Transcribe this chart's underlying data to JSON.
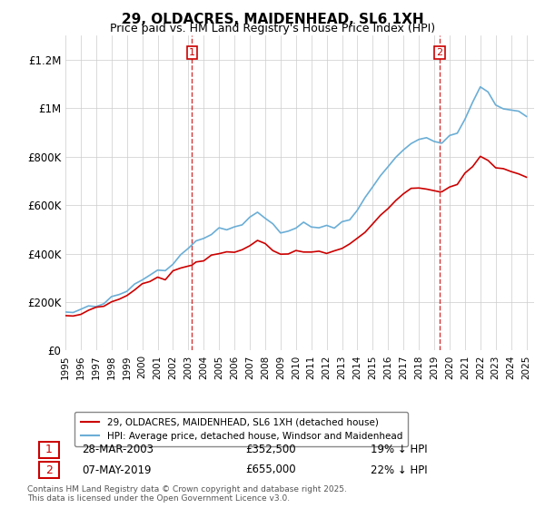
{
  "title": "29, OLDACRES, MAIDENHEAD, SL6 1XH",
  "subtitle": "Price paid vs. HM Land Registry's House Price Index (HPI)",
  "legend_line1": "29, OLDACRES, MAIDENHEAD, SL6 1XH (detached house)",
  "legend_line2": "HPI: Average price, detached house, Windsor and Maidenhead",
  "footnote": "Contains HM Land Registry data © Crown copyright and database right 2025.\nThis data is licensed under the Open Government Licence v3.0.",
  "sale1_label": "1",
  "sale1_date": "28-MAR-2003",
  "sale1_price": "£352,500",
  "sale1_note": "19% ↓ HPI",
  "sale2_label": "2",
  "sale2_date": "07-MAY-2019",
  "sale2_price": "£655,000",
  "sale2_note": "22% ↓ HPI",
  "sale1_year": 2003.24,
  "sale1_value": 352500,
  "sale2_year": 2019.35,
  "sale2_value": 655000,
  "hpi_color": "#6baed6",
  "price_color": "#cc0000",
  "sale_marker_color": "#cc0000",
  "background_color": "#ffffff",
  "ylim": [
    0,
    1300000
  ],
  "xlim_start": 1995,
  "xlim_end": 2025.5
}
